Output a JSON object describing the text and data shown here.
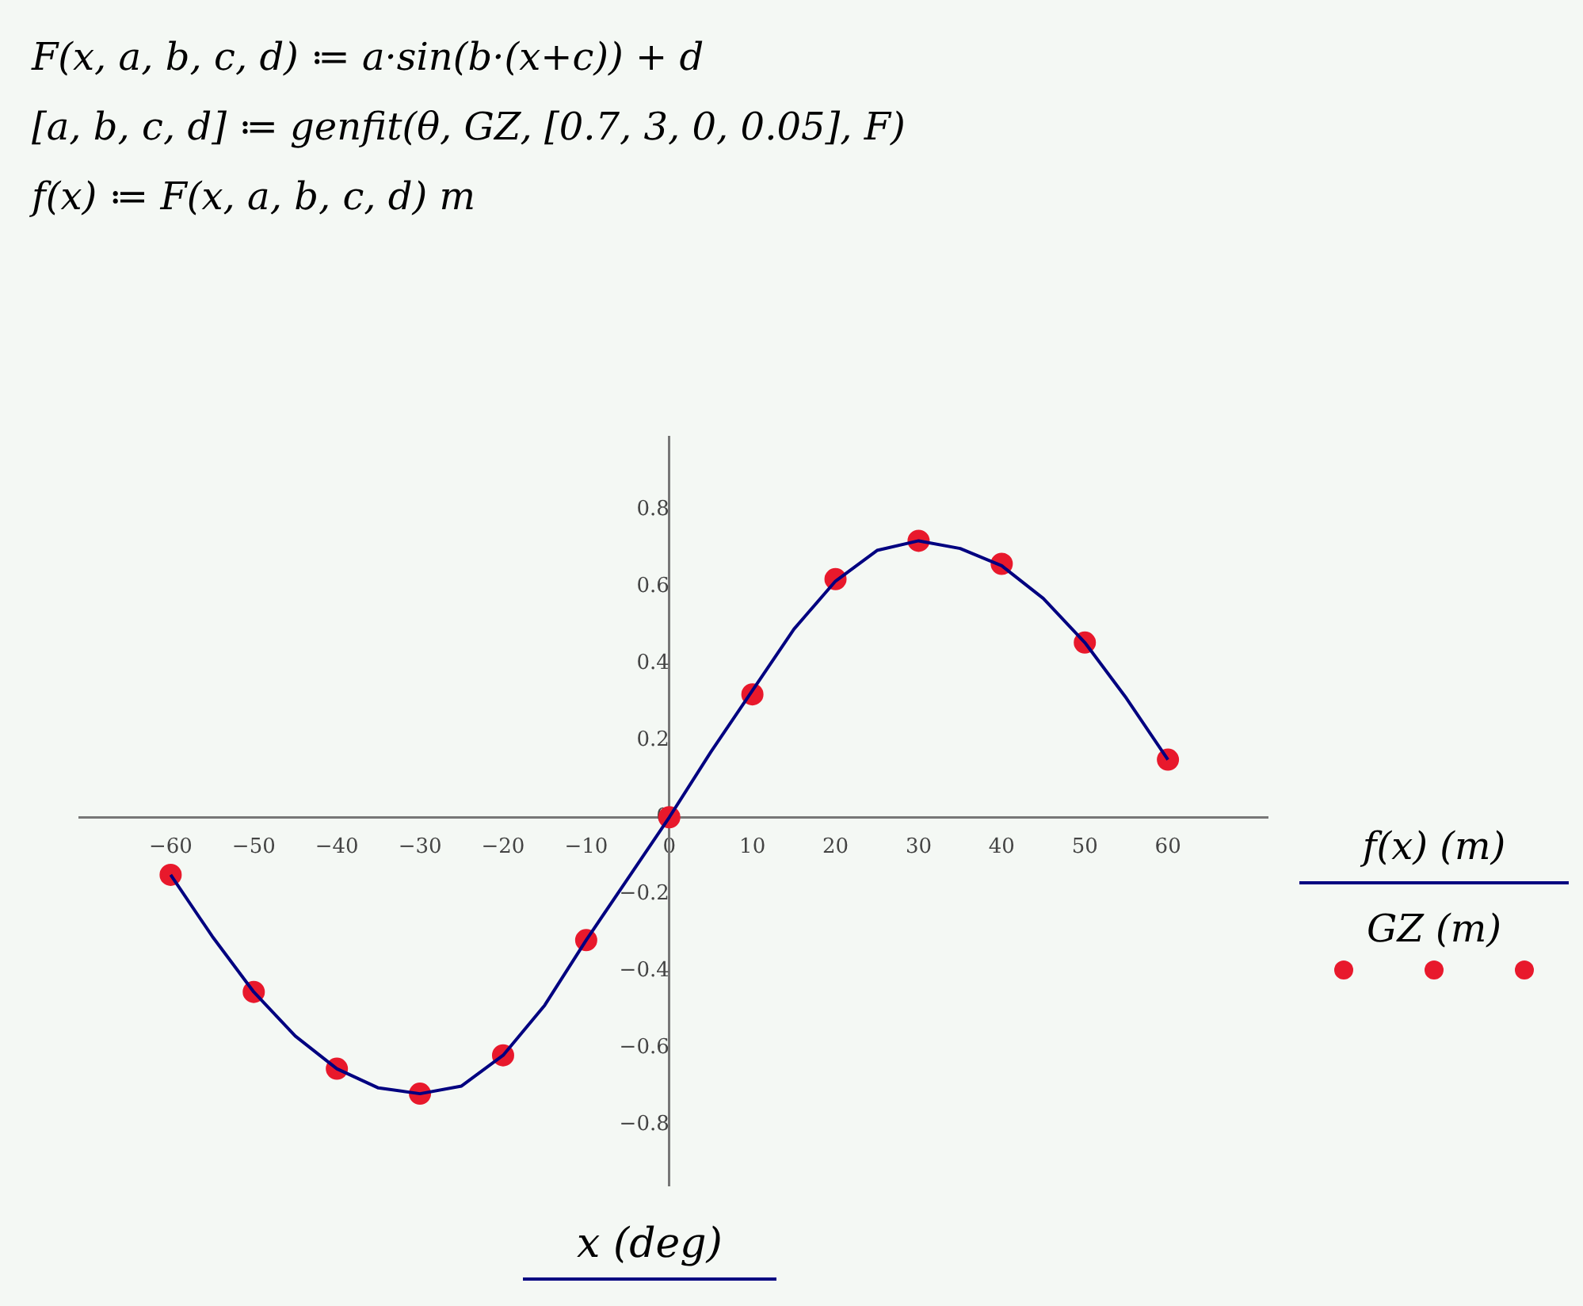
{
  "chart_data": {
    "type": "scatter",
    "xlabel": "x (deg)",
    "annotations": [
      "F(x, a, b, c, d) ≔ a·sin(b·(x+c)) + d",
      "[a, b, c, d] ≔ genfit(θ, GZ, [0.7, 3, 0, 0.05], F)",
      "f(x) ≔ F(x, a, b, c, d) m"
    ],
    "xlim": [
      -71,
      72
    ],
    "xticks": [
      -60,
      -50,
      -40,
      -30,
      -20,
      -10,
      0,
      10,
      20,
      30,
      40,
      50,
      60
    ],
    "ylim": [
      -0.96,
      0.99
    ],
    "yticks": [
      -0.8,
      -0.6,
      -0.4,
      -0.2,
      0,
      0.2,
      0.4,
      0.6,
      0.8
    ],
    "grid": false,
    "legend": "right",
    "series": [
      {
        "name": "f(x) (m)",
        "type": "line",
        "marker": "none",
        "color": "#000080",
        "x": [
          -60,
          -55,
          -50,
          -45,
          -40,
          -35,
          -30,
          -25,
          -20,
          -15,
          -10,
          -5,
          0,
          5,
          10,
          15,
          20,
          25,
          30,
          35,
          40,
          45,
          50,
          55,
          60
        ],
        "values": [
          -0.15,
          -0.31,
          -0.455,
          -0.57,
          -0.655,
          -0.705,
          -0.72,
          -0.7,
          -0.62,
          -0.49,
          -0.32,
          -0.16,
          0,
          0.17,
          0.33,
          0.49,
          0.615,
          0.695,
          0.72,
          0.7,
          0.655,
          0.57,
          0.455,
          0.31,
          0.15
        ]
      },
      {
        "name": "GZ (m)",
        "type": "scatter",
        "marker": "circle",
        "color": "#e8192c",
        "x": [
          -60,
          -50,
          -40,
          -30,
          -20,
          -10,
          0,
          10,
          20,
          30,
          40,
          50,
          60
        ],
        "values": [
          -0.15,
          -0.455,
          -0.655,
          -0.72,
          -0.62,
          -0.32,
          0,
          0.32,
          0.62,
          0.72,
          0.66,
          0.455,
          0.15
        ]
      }
    ]
  }
}
